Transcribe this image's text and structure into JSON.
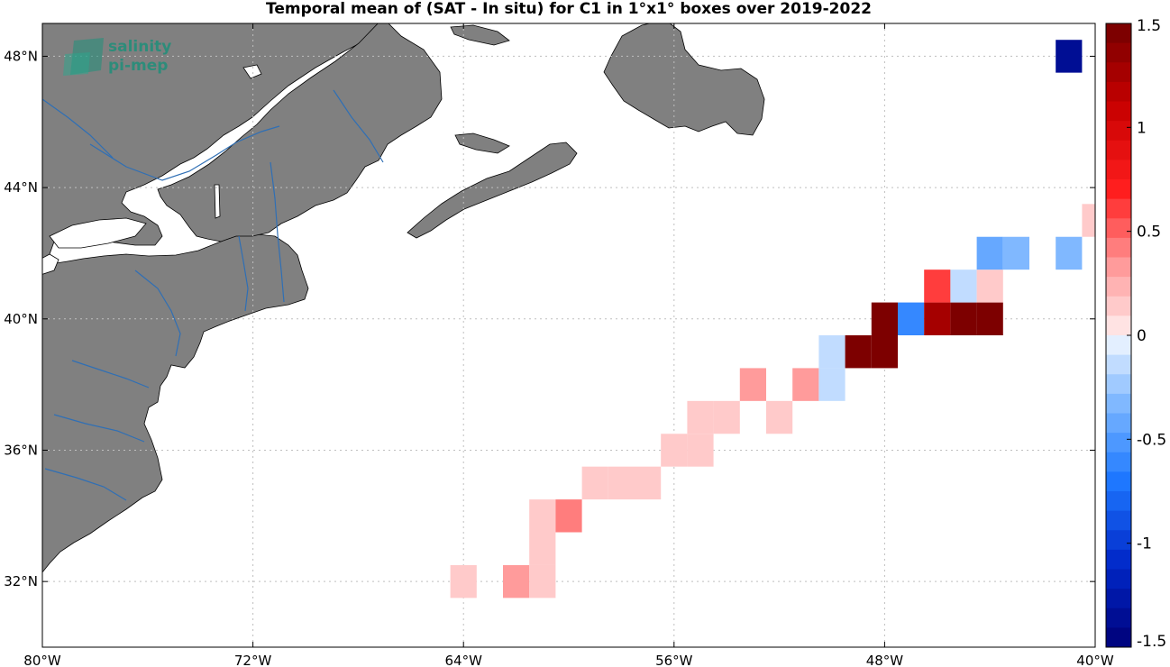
{
  "title": "Temporal mean of (SAT - In situ) for C1 in 1°x1° boxes over 2019-2022",
  "logo": {
    "line1": "salinity",
    "line2": "pi-mep"
  },
  "map": {
    "lon_range": [
      -80,
      -40
    ],
    "lat_range": [
      30,
      49
    ],
    "grid": true,
    "land_color": "#808080",
    "coast_color": "#000000",
    "river_color": "#2f6fb5",
    "x_ticks": [
      {
        "value": -80,
        "label": "80°W"
      },
      {
        "value": -72,
        "label": "72°W"
      },
      {
        "value": -64,
        "label": "64°W"
      },
      {
        "value": -56,
        "label": "56°W"
      },
      {
        "value": -48,
        "label": "48°W"
      },
      {
        "value": -40,
        "label": "40°W"
      }
    ],
    "y_ticks": [
      {
        "value": 32,
        "label": "32°N"
      },
      {
        "value": 36,
        "label": "36°N"
      },
      {
        "value": 40,
        "label": "40°N"
      },
      {
        "value": 44,
        "label": "44°N"
      },
      {
        "value": 48,
        "label": "48°N"
      }
    ]
  },
  "colorbar": {
    "min": -1.5,
    "max": 1.5,
    "ticks": [
      {
        "value": 1.5,
        "label": "1.5"
      },
      {
        "value": 1,
        "label": "1"
      },
      {
        "value": 0.5,
        "label": "0.5"
      },
      {
        "value": 0,
        "label": "0"
      },
      {
        "value": -0.5,
        "label": "-0.5"
      },
      {
        "value": -1,
        "label": "-1"
      },
      {
        "value": -1.5,
        "label": "-1.5"
      }
    ]
  },
  "chart_data": {
    "type": "heatmap",
    "title": "Temporal mean of (SAT - In situ) for C1 in 1°x1° boxes over 2019-2022",
    "cell_size_deg": 1,
    "cells": [
      {
        "lon": -64,
        "lat": 32,
        "value": 0.1
      },
      {
        "lon": -62,
        "lat": 32,
        "value": 0.3
      },
      {
        "lon": -61,
        "lat": 32,
        "value": 0.15
      },
      {
        "lon": -61,
        "lat": 33,
        "value": 0.15
      },
      {
        "lon": -61,
        "lat": 34,
        "value": 0.15
      },
      {
        "lon": -60,
        "lat": 34,
        "value": 0.45
      },
      {
        "lon": -59,
        "lat": 35,
        "value": 0.15
      },
      {
        "lon": -58,
        "lat": 35,
        "value": 0.15
      },
      {
        "lon": -57,
        "lat": 35,
        "value": 0.15
      },
      {
        "lon": -56,
        "lat": 36,
        "value": 0.15
      },
      {
        "lon": -55,
        "lat": 36,
        "value": 0.15
      },
      {
        "lon": -55,
        "lat": 37,
        "value": 0.15
      },
      {
        "lon": -54,
        "lat": 37,
        "value": 0.15
      },
      {
        "lon": -53,
        "lat": 38,
        "value": 0.3
      },
      {
        "lon": -52,
        "lat": 37,
        "value": 0.15
      },
      {
        "lon": -51,
        "lat": 38,
        "value": 0.3
      },
      {
        "lon": -50,
        "lat": 38,
        "value": -0.15
      },
      {
        "lon": -50,
        "lat": 39,
        "value": -0.1
      },
      {
        "lon": -49,
        "lat": 39,
        "value": 1.5
      },
      {
        "lon": -48,
        "lat": 39,
        "value": 1.5
      },
      {
        "lon": -48,
        "lat": 40,
        "value": 1.5
      },
      {
        "lon": -47,
        "lat": 40,
        "value": -0.65
      },
      {
        "lon": -46,
        "lat": 40,
        "value": 1.3
      },
      {
        "lon": -45,
        "lat": 40,
        "value": 1.45
      },
      {
        "lon": -44,
        "lat": 40,
        "value": 1.5
      },
      {
        "lon": -46,
        "lat": 41,
        "value": 0.6
      },
      {
        "lon": -45,
        "lat": 41,
        "value": -0.12
      },
      {
        "lon": -44,
        "lat": 41,
        "value": 0.15
      },
      {
        "lon": -44,
        "lat": 42,
        "value": -0.4
      },
      {
        "lon": -43,
        "lat": 42,
        "value": -0.3
      },
      {
        "lon": -41,
        "lat": 42,
        "value": -0.3
      },
      {
        "lon": -40,
        "lat": 43,
        "value": 0.15
      },
      {
        "lon": -41,
        "lat": 48,
        "value": -1.4
      }
    ]
  }
}
